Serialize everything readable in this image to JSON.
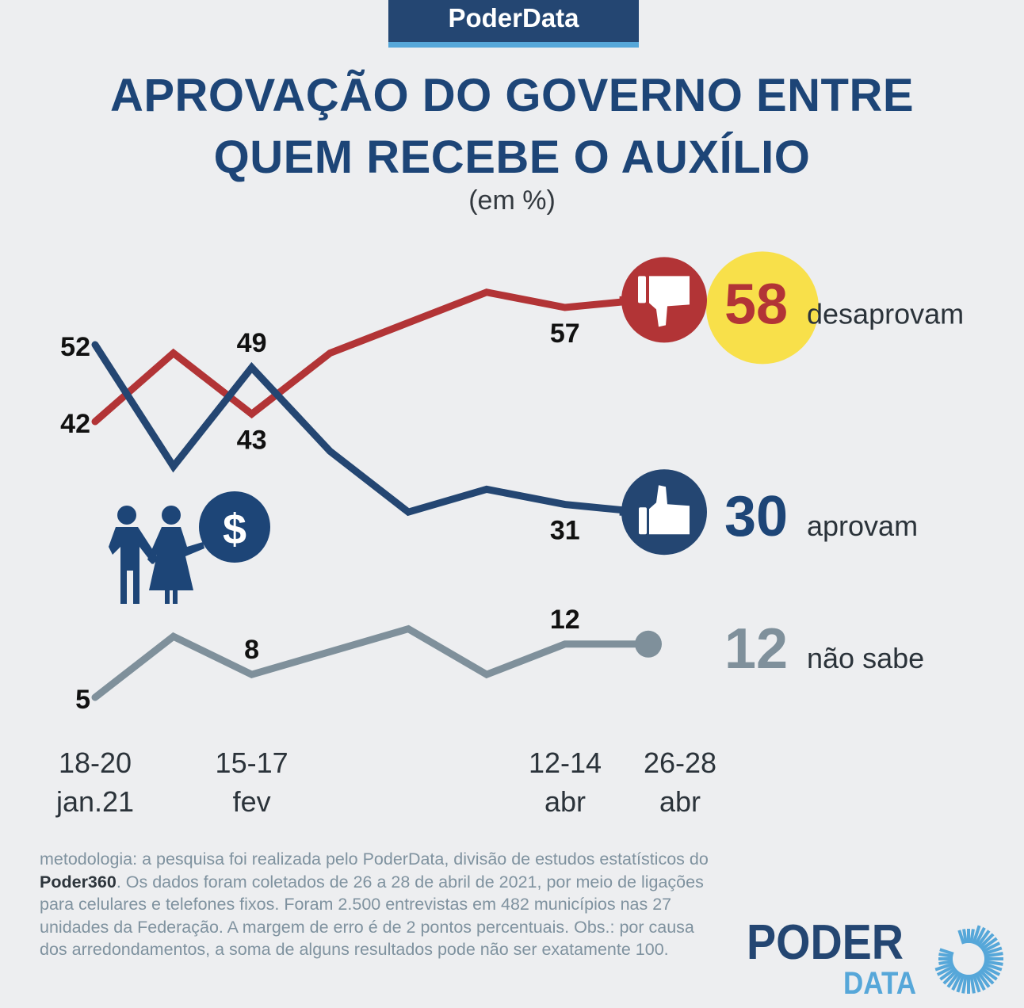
{
  "brand": "PoderData",
  "title_line1": "APROVAÇÃO DO GOVERNO ENTRE",
  "title_line2": "QUEM RECEBE O AUXÍLIO",
  "subtitle": "(em %)",
  "chart_data": {
    "type": "line",
    "title": "APROVAÇÃO DO GOVERNO ENTRE QUEM RECEBE O AUXÍLIO",
    "subtitle": "(em %)",
    "ylim": [
      0,
      65
    ],
    "grid": false,
    "x_labels": [
      {
        "index": 0,
        "line1": "18-20",
        "line2": "jan.21"
      },
      {
        "index": 2,
        "line1": "15-17",
        "line2": "fev"
      },
      {
        "index": 6,
        "line1": "12-14",
        "line2": "abr"
      },
      {
        "index": 7,
        "line1": "26-28",
        "line2": "abr"
      }
    ],
    "x": [
      "18-20 jan.21",
      "",
      "15-17 fev",
      "",
      "",
      "",
      "12-14 abr",
      "26-28 abr"
    ],
    "series": [
      {
        "name": "desaprovam",
        "color": "#b23436",
        "values": [
          42,
          51,
          43,
          51,
          55,
          59,
          57,
          58
        ],
        "labels": [
          {
            "index": 0,
            "text": "42",
            "pos": "left"
          },
          {
            "index": 2,
            "text": "43",
            "pos": "below"
          },
          {
            "index": 6,
            "text": "57",
            "pos": "below"
          }
        ],
        "final": {
          "value": "58",
          "label": "desaprovam",
          "icon": "thumbs-down-icon",
          "value_color": "#b23436",
          "highlight": "#f8e04a"
        }
      },
      {
        "name": "aprovam",
        "color": "#244672",
        "values": [
          52,
          36,
          49,
          38,
          30,
          33,
          31,
          30
        ],
        "labels": [
          {
            "index": 0,
            "text": "52",
            "pos": "left"
          },
          {
            "index": 2,
            "text": "49",
            "pos": "above"
          },
          {
            "index": 6,
            "text": "31",
            "pos": "below"
          }
        ],
        "final": {
          "value": "30",
          "label": "aprovam",
          "icon": "thumbs-up-icon",
          "value_color": "#1d4577"
        }
      },
      {
        "name": "não sabe",
        "color": "#7f909b",
        "values": [
          5,
          13,
          8,
          11,
          14,
          8,
          12,
          12
        ],
        "labels": [
          {
            "index": 0,
            "text": "5",
            "pos": "left"
          },
          {
            "index": 2,
            "text": "8",
            "pos": "above"
          },
          {
            "index": 6,
            "text": "12",
            "pos": "above"
          }
        ],
        "final": {
          "value": "12",
          "label": "não sabe",
          "icon": "dot-marker-icon",
          "value_color": "#7f909b"
        }
      }
    ]
  },
  "illustration": {
    "icon": "family-money-icon",
    "symbol": "$"
  },
  "methodology": {
    "part1": "metodologia: a pesquisa foi realizada pelo PoderData, divisão de estudos estatísticos do ",
    "bold": "Poder360",
    "part2": ". Os dados foram coletados de 26 a 28 de abril de 2021, por meio de ligações para celulares e telefones fixos. Foram 2.500 entrevistas em 482 municípios nas 27 unidades da Federação. A margem de erro é de 2 pontos percentuais. Obs.: por causa dos arredondamentos, a soma de alguns resultados pode não ser exatamente 100."
  },
  "logo": {
    "line1": "PODER",
    "line2": "DATA"
  },
  "colors": {
    "background": "#edeef0",
    "brand_dark": "#244672",
    "brand_light": "#56a7d9",
    "title": "#1d4577"
  }
}
